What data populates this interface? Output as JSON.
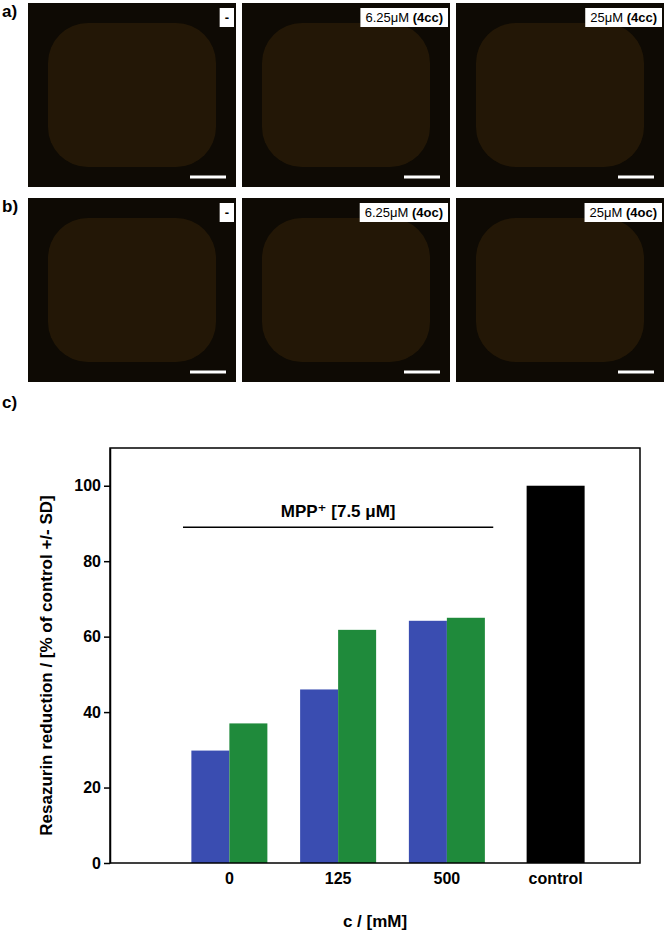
{
  "image_panels": [
    {
      "label": "a)",
      "images": [
        {
          "conc": "-"
        },
        {
          "conc": "6.25μM ",
          "compound": "(4cc)"
        },
        {
          "conc": "25μM ",
          "compound": "(4cc)"
        }
      ]
    },
    {
      "label": "b)",
      "images": [
        {
          "conc": "-"
        },
        {
          "conc": "6.25μM ",
          "compound": "(4oc)"
        },
        {
          "conc": "25μM ",
          "compound": "(4oc)"
        }
      ]
    }
  ],
  "chart_data": {
    "type": "bar",
    "label": "c)",
    "categories": [
      "0",
      "125",
      "500",
      "control"
    ],
    "xlabel": "c / [mM]",
    "ylabel": "Resazurin reduction / [% of control +/- SD]",
    "ylim": [
      0,
      110
    ],
    "yticks": [
      0,
      20,
      40,
      60,
      80,
      100
    ],
    "series": [
      {
        "color": "#3a4db1",
        "values": [
          29.8,
          46,
          64.2,
          null
        ]
      },
      {
        "color": "#1f8a3b",
        "values": [
          37,
          61.8,
          65,
          null
        ]
      },
      {
        "color": "#000000",
        "values": [
          null,
          null,
          null,
          100
        ]
      }
    ],
    "annotations": [
      {
        "text": "MPP⁺ [7.5 μM]",
        "from": "0",
        "to": "500",
        "y": 89
      }
    ]
  }
}
